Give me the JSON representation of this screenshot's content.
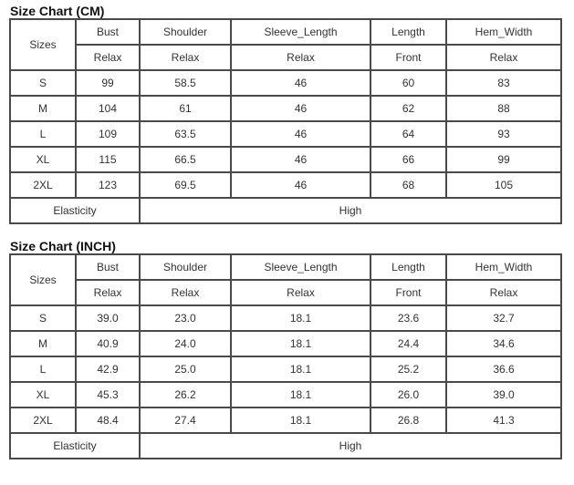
{
  "tables": [
    {
      "title": "Size Chart (CM)",
      "size_header": "Sizes",
      "columns": [
        "Bust",
        "Shoulder",
        "Sleeve_Length",
        "Length",
        "Hem_Width"
      ],
      "sub_headers": [
        "Relax",
        "Relax",
        "Relax",
        "Front",
        "Relax"
      ],
      "rows": [
        [
          "S",
          "99",
          "58.5",
          "46",
          "60",
          "83"
        ],
        [
          "M",
          "104",
          "61",
          "46",
          "62",
          "88"
        ],
        [
          "L",
          "109",
          "63.5",
          "46",
          "64",
          "93"
        ],
        [
          "XL",
          "115",
          "66.5",
          "46",
          "66",
          "99"
        ],
        [
          "2XL",
          "123",
          "69.5",
          "46",
          "68",
          "105"
        ]
      ],
      "elasticity_label": "Elasticity",
      "elasticity_value": "High"
    },
    {
      "title": "Size Chart (INCH)",
      "size_header": "Sizes",
      "columns": [
        "Bust",
        "Shoulder",
        "Sleeve_Length",
        "Length",
        "Hem_Width"
      ],
      "sub_headers": [
        "Relax",
        "Relax",
        "Relax",
        "Front",
        "Relax"
      ],
      "rows": [
        [
          "S",
          "39.0",
          "23.0",
          "18.1",
          "23.6",
          "32.7"
        ],
        [
          "M",
          "40.9",
          "24.0",
          "18.1",
          "24.4",
          "34.6"
        ],
        [
          "L",
          "42.9",
          "25.0",
          "18.1",
          "25.2",
          "36.6"
        ],
        [
          "XL",
          "45.3",
          "26.2",
          "18.1",
          "26.0",
          "39.0"
        ],
        [
          "2XL",
          "48.4",
          "27.4",
          "18.1",
          "26.8",
          "41.3"
        ]
      ],
      "elasticity_label": "Elasticity",
      "elasticity_value": "High"
    }
  ]
}
